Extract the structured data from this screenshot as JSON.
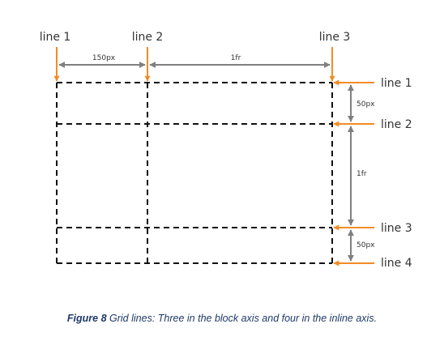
{
  "colors": {
    "accent": "#f28c28",
    "dimension": "#7f7f7f",
    "grid": "#111111",
    "caption": "#1f3a66"
  },
  "column_lines": [
    {
      "label": "line 1"
    },
    {
      "label": "line 2"
    },
    {
      "label": "line 3"
    }
  ],
  "row_lines": [
    {
      "label": "line 1"
    },
    {
      "label": "line 2"
    },
    {
      "label": "line 3"
    },
    {
      "label": "line 4"
    }
  ],
  "column_sizes": [
    "150px",
    "1fr"
  ],
  "row_sizes": [
    "50px",
    "1fr",
    "50px"
  ],
  "caption": {
    "figure": "Figure 8",
    "text": " Grid lines: Three in the block axis and four in the inline axis."
  }
}
